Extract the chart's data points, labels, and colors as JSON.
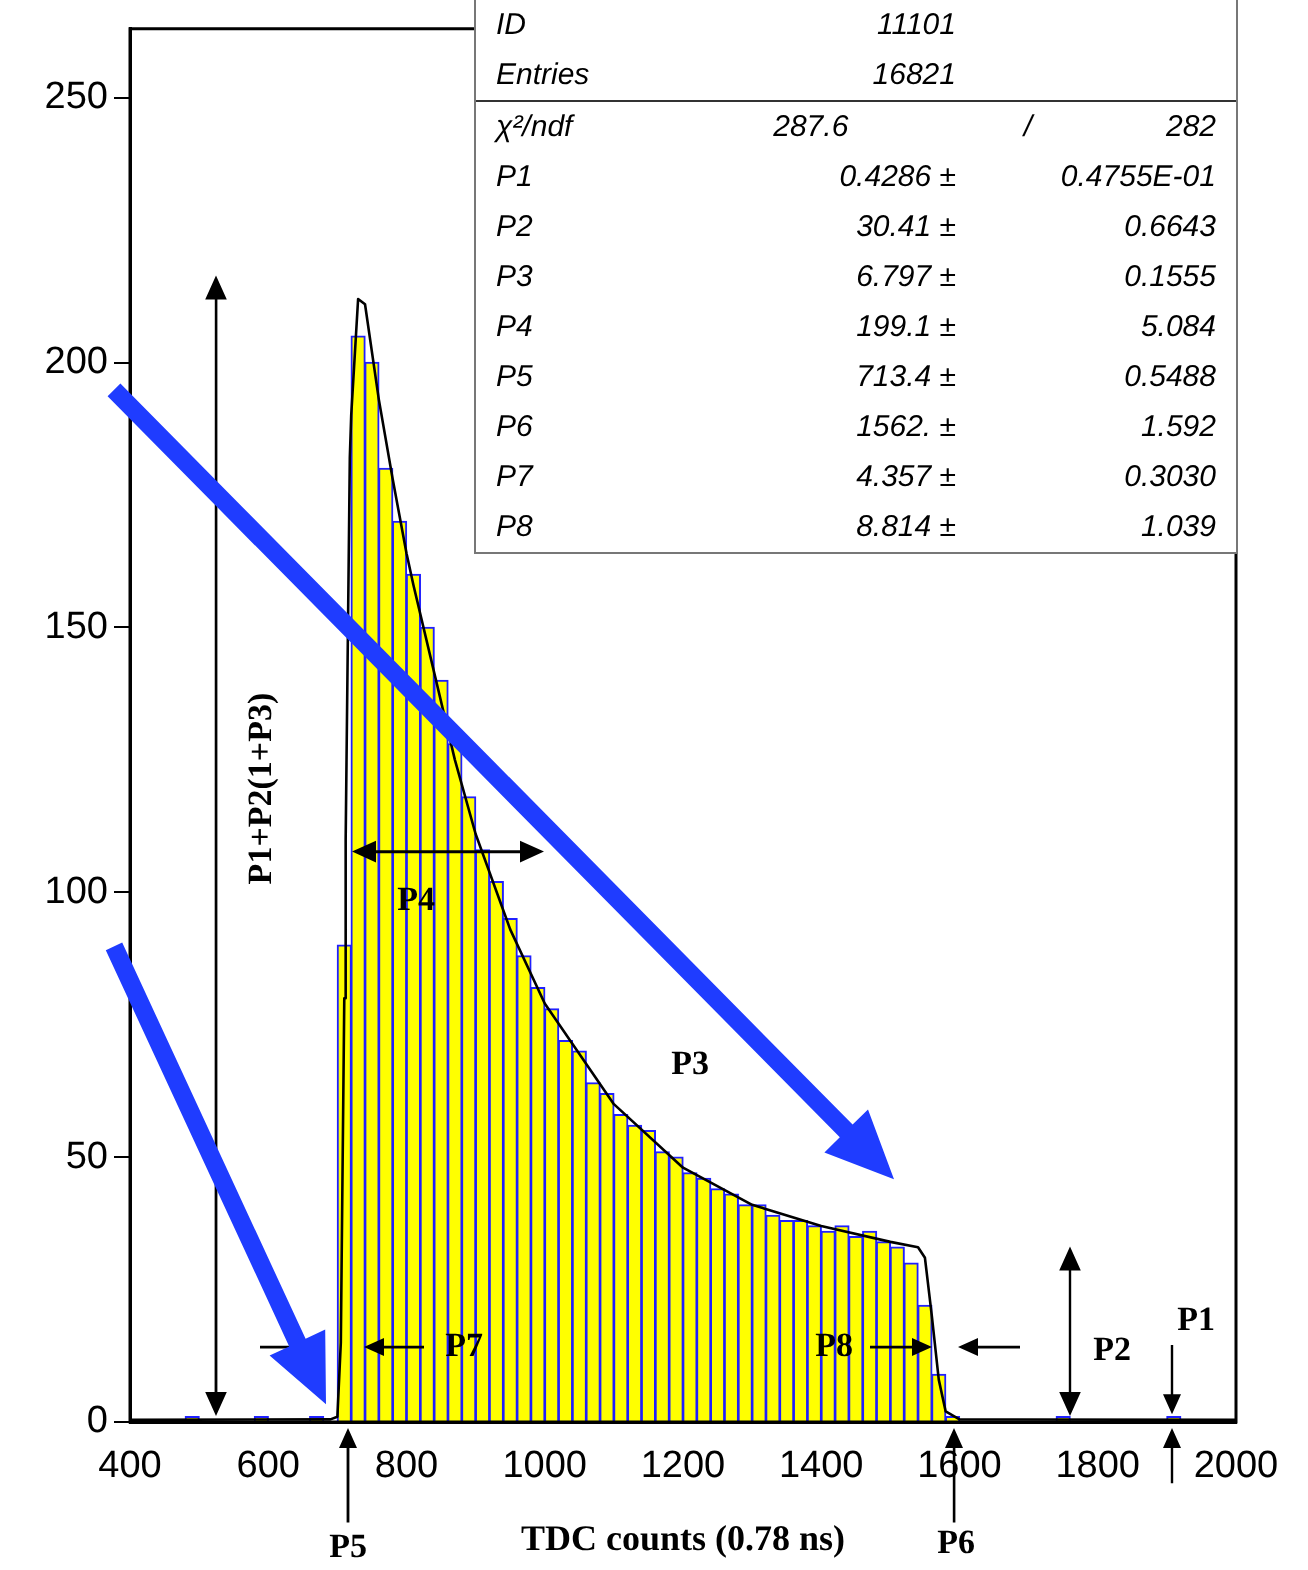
{
  "chart_data": {
    "type": "histogram",
    "xlabel": "TDC counts (0.78 ns)",
    "bins": [
      400,
      420,
      440,
      460,
      480,
      500,
      520,
      540,
      560,
      580,
      600,
      620,
      640,
      660,
      680,
      700,
      720,
      740,
      760,
      780,
      800,
      820,
      840,
      860,
      880,
      900,
      920,
      940,
      960,
      980,
      1000,
      1020,
      1040,
      1060,
      1080,
      1100,
      1120,
      1140,
      1160,
      1180,
      1200,
      1220,
      1240,
      1260,
      1280,
      1300,
      1320,
      1340,
      1360,
      1380,
      1400,
      1420,
      1440,
      1460,
      1480,
      1500,
      1520,
      1540,
      1560,
      1580,
      1600,
      1620,
      1640,
      1660,
      1680,
      1700,
      1720,
      1740,
      1760,
      1780,
      1800,
      1820,
      1840,
      1860,
      1880,
      1900,
      1920,
      1940,
      1960,
      1980,
      2000
    ],
    "values": [
      0,
      0,
      0,
      0,
      1,
      0,
      0,
      0,
      0,
      1,
      0,
      0,
      0,
      1,
      0,
      90,
      205,
      200,
      180,
      170,
      160,
      150,
      140,
      128,
      118,
      108,
      102,
      95,
      88,
      82,
      78,
      72,
      70,
      64,
      62,
      58,
      56,
      55,
      51,
      50,
      47,
      46,
      44,
      43,
      41,
      41,
      39,
      38,
      38,
      37,
      36,
      37,
      35,
      36,
      34,
      33,
      30,
      22,
      9,
      1,
      0,
      0,
      0,
      0,
      0,
      0,
      0,
      1,
      0,
      0,
      0,
      0,
      0,
      0,
      0,
      1,
      0,
      0,
      0,
      0
    ],
    "color": "#ffff00",
    "series": [
      {
        "type": "line",
        "color": "#000000",
        "x": [
          400,
          690,
          700,
          705,
          710,
          712,
          718,
          720,
          730,
          740,
          760,
          780,
          800,
          810,
          870,
          900,
          950,
          1000,
          1100,
          1200,
          1300,
          1400,
          1500,
          1540,
          1550,
          1560,
          1570,
          1580,
          1600,
          2000
        ],
        "values": [
          0.4,
          0.5,
          1,
          15,
          80,
          110,
          182,
          190,
          212,
          211,
          193,
          178,
          164,
          158,
          125,
          111,
          93,
          79,
          60,
          48,
          41,
          37,
          34,
          33,
          31,
          20,
          8,
          2,
          0.5,
          0.4
        ]
      }
    ],
    "xlim": [
      400,
      2000
    ],
    "xticks": [
      400,
      600,
      800,
      1000,
      1200,
      1400,
      1600,
      1800,
      2000
    ],
    "ylim": [
      0,
      263
    ],
    "yticks": [
      0,
      50,
      100,
      150,
      200,
      250
    ],
    "grid": false,
    "legend": false,
    "annotations": [
      "P1+P2(1+P3)",
      "P4",
      "P7",
      "P3",
      "P8",
      "P2",
      "P1",
      "P5",
      "P6",
      "ID  11101",
      "Entries  16821",
      "χ²/ndf  287.6  /  282",
      "P1  0.4286 ±  0.4755E-01",
      "P2  30.41 ±  0.6643",
      "P3  6.797 ±  0.1555",
      "P4  199.1 ±  5.084",
      "P5  713.4 ±  0.5488",
      "P6  1562. ±  1.592",
      "P7  4.357 ±  0.3030",
      "P8  8.814 ±  1.039"
    ]
  }
}
